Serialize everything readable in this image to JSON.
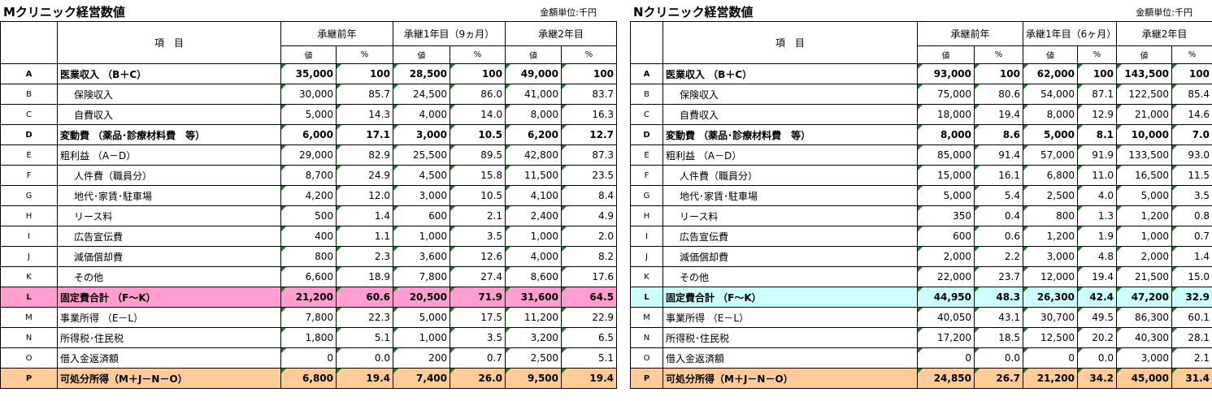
{
  "tables": [
    {
      "title": "Mクリニック経営数値",
      "unit": "金額単位:千円",
      "header": {
        "item": "項　目",
        "periods": [
          "承継前年",
          "承継1年目（9ヵ月）",
          "承継2年目"
        ],
        "sub": [
          "値",
          "%"
        ]
      },
      "rows": [
        {
          "code": "A",
          "label": "医業収入 （B＋C）",
          "cells": [
            "35,000",
            "100",
            "28,500",
            "100",
            "49,000",
            "100"
          ]
        },
        {
          "code": "B",
          "label": "保険収入",
          "cells": [
            "30,000",
            "85.7",
            "24,500",
            "86.0",
            "41,000",
            "83.7"
          ]
        },
        {
          "code": "C",
          "label": "自費収入",
          "cells": [
            "5,000",
            "14.3",
            "4,000",
            "14.0",
            "8,000",
            "16.3"
          ]
        },
        {
          "code": "D",
          "label": "変動費 （薬品･診療材料費　等）",
          "cells": [
            "6,000",
            "17.1",
            "3,000",
            "10.5",
            "6,200",
            "12.7"
          ]
        },
        {
          "code": "E",
          "label": "粗利益 （A－D）",
          "cells": [
            "29,000",
            "82.9",
            "25,500",
            "89.5",
            "42,800",
            "87.3"
          ]
        },
        {
          "code": "F",
          "label": "人件費（職員分）",
          "cells": [
            "8,700",
            "24.9",
            "4,500",
            "15.8",
            "11,500",
            "23.5"
          ]
        },
        {
          "code": "G",
          "label": "地代･家賃･駐車場",
          "cells": [
            "4,200",
            "12.0",
            "3,000",
            "10.5",
            "4,100",
            "8.4"
          ]
        },
        {
          "code": "H",
          "label": "リース料",
          "cells": [
            "500",
            "1.4",
            "600",
            "2.1",
            "2,400",
            "4.9"
          ]
        },
        {
          "code": "I",
          "label": "広告宣伝費",
          "cells": [
            "400",
            "1.1",
            "1,000",
            "3.5",
            "1,000",
            "2.0"
          ]
        },
        {
          "code": "J",
          "label": "減価償却費",
          "cells": [
            "800",
            "2.3",
            "3,600",
            "12.6",
            "4,000",
            "8.2"
          ]
        },
        {
          "code": "K",
          "label": "その他",
          "cells": [
            "6,600",
            "18.9",
            "7,800",
            "27.4",
            "8,600",
            "17.6"
          ]
        },
        {
          "code": "L",
          "label": "固定費合計 （F～K）",
          "cells": [
            "21,200",
            "60.6",
            "20,500",
            "71.9",
            "31,600",
            "64.5"
          ]
        },
        {
          "code": "M",
          "label": "事業所得 （E－L）",
          "cells": [
            "7,800",
            "22.3",
            "5,000",
            "17.5",
            "11,200",
            "22.9"
          ]
        },
        {
          "code": "N",
          "label": "所得税･住民税",
          "cells": [
            "1,800",
            "5.1",
            "1,000",
            "3.5",
            "3,200",
            "6.5"
          ]
        },
        {
          "code": "O",
          "label": "借入金返済額",
          "cells": [
            "0",
            "0.0",
            "200",
            "0.7",
            "2,500",
            "5.1"
          ]
        },
        {
          "code": "P",
          "label": "可処分所得（M＋J－N－O）",
          "cells": [
            "6,800",
            "19.4",
            "7,400",
            "26.0",
            "9,500",
            "19.4"
          ]
        }
      ]
    },
    {
      "title": "Nクリニック経営数値",
      "unit": "金額単位:千円",
      "header": {
        "item": "項　目",
        "periods": [
          "承継前年",
          "承継1年目（6ヶ月）",
          "承継2年目"
        ],
        "sub": [
          "値",
          "%"
        ]
      },
      "rows": [
        {
          "code": "A",
          "label": "医業収入 （B＋C）",
          "cells": [
            "93,000",
            "100",
            "62,000",
            "100",
            "143,500",
            "100"
          ]
        },
        {
          "code": "B",
          "label": "保険収入",
          "cells": [
            "75,000",
            "80.6",
            "54,000",
            "87.1",
            "122,500",
            "85.4"
          ]
        },
        {
          "code": "C",
          "label": "自費収入",
          "cells": [
            "18,000",
            "19.4",
            "8,000",
            "12.9",
            "21,000",
            "14.6"
          ]
        },
        {
          "code": "D",
          "label": "変動費 （薬品･診療材料費　等）",
          "cells": [
            "8,000",
            "8.6",
            "5,000",
            "8.1",
            "10,000",
            "7.0"
          ]
        },
        {
          "code": "E",
          "label": "粗利益 （A－D）",
          "cells": [
            "85,000",
            "91.4",
            "57,000",
            "91.9",
            "133,500",
            "93.0"
          ]
        },
        {
          "code": "F",
          "label": "人件費（職員分）",
          "cells": [
            "15,000",
            "16.1",
            "6,800",
            "11.0",
            "16,500",
            "11.5"
          ]
        },
        {
          "code": "G",
          "label": "地代･家賃･駐車場",
          "cells": [
            "5,000",
            "5.4",
            "2,500",
            "4.0",
            "5,000",
            "3.5"
          ]
        },
        {
          "code": "H",
          "label": "リース料",
          "cells": [
            "350",
            "0.4",
            "800",
            "1.3",
            "1,200",
            "0.8"
          ]
        },
        {
          "code": "I",
          "label": "広告宣伝費",
          "cells": [
            "600",
            "0.6",
            "1,200",
            "1.9",
            "1,000",
            "0.7"
          ]
        },
        {
          "code": "J",
          "label": "減価償却費",
          "cells": [
            "2,000",
            "2.2",
            "3,000",
            "4.8",
            "2,000",
            "1.4"
          ]
        },
        {
          "code": "K",
          "label": "その他",
          "cells": [
            "22,000",
            "23.7",
            "12,000",
            "19.4",
            "21,500",
            "15.0"
          ]
        },
        {
          "code": "L",
          "label": "固定費合計 （F～K）",
          "cells": [
            "44,950",
            "48.3",
            "26,300",
            "42.4",
            "47,200",
            "32.9"
          ]
        },
        {
          "code": "M",
          "label": "事業所得 （E－L）",
          "cells": [
            "40,050",
            "43.1",
            "30,700",
            "49.5",
            "86,300",
            "60.1"
          ]
        },
        {
          "code": "N",
          "label": "所得税･住民税",
          "cells": [
            "17,200",
            "18.5",
            "12,500",
            "20.2",
            "40,300",
            "28.1"
          ]
        },
        {
          "code": "O",
          "label": "借入金返済額",
          "cells": [
            "0",
            "0.0",
            "0",
            "0.0",
            "3,000",
            "2.1"
          ]
        },
        {
          "code": "P",
          "label": "可処分所得（M＋J－N－O）",
          "cells": [
            "24,850",
            "26.7",
            "21,200",
            "34.2",
            "45,000",
            "31.4"
          ]
        }
      ]
    }
  ]
}
